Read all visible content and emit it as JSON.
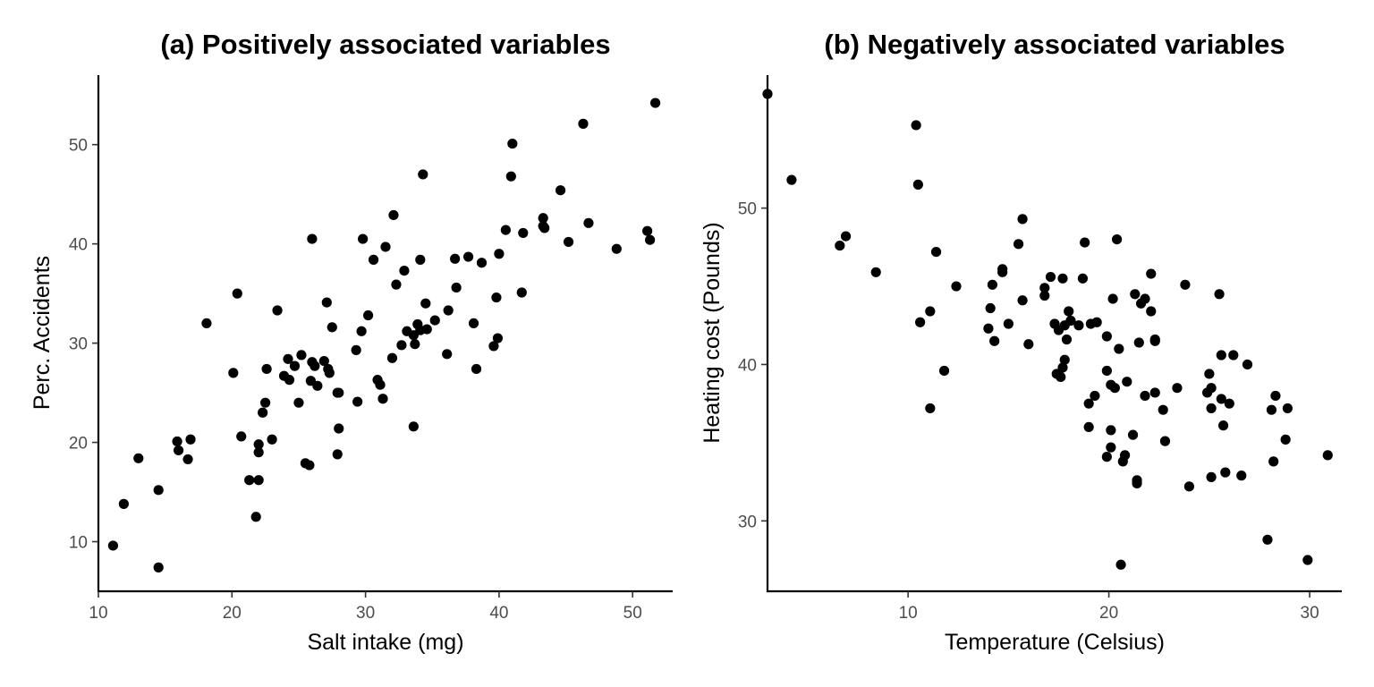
{
  "chart_data": [
    {
      "type": "scatter",
      "title": "(a) Positively associated variables",
      "xlabel": "Salt intake (mg)",
      "ylabel": "Perc. Accidents",
      "xlim": [
        10,
        53
      ],
      "ylim": [
        5,
        57
      ],
      "xticks": [
        10,
        20,
        30,
        40,
        50
      ],
      "yticks": [
        10,
        20,
        30,
        40,
        50
      ],
      "grid": false,
      "point_color": "#000000",
      "points": [
        [
          11.1,
          9.6
        ],
        [
          11.9,
          13.8
        ],
        [
          13.0,
          18.4
        ],
        [
          14.5,
          15.2
        ],
        [
          14.5,
          7.4
        ],
        [
          15.9,
          20.1
        ],
        [
          16.0,
          19.2
        ],
        [
          16.7,
          18.3
        ],
        [
          16.9,
          20.3
        ],
        [
          18.1,
          32.0
        ],
        [
          20.1,
          27.0
        ],
        [
          20.4,
          35.0
        ],
        [
          20.7,
          20.6
        ],
        [
          21.3,
          16.2
        ],
        [
          21.8,
          12.5
        ],
        [
          22.0,
          19.8
        ],
        [
          22.0,
          19.0
        ],
        [
          22.0,
          16.2
        ],
        [
          22.3,
          23.0
        ],
        [
          22.5,
          24.0
        ],
        [
          22.6,
          27.4
        ],
        [
          23.0,
          20.3
        ],
        [
          23.4,
          33.3
        ],
        [
          23.9,
          26.7
        ],
        [
          24.2,
          28.4
        ],
        [
          24.3,
          26.3
        ],
        [
          24.7,
          27.7
        ],
        [
          25.0,
          24.0
        ],
        [
          25.2,
          28.8
        ],
        [
          25.5,
          17.9
        ],
        [
          25.8,
          17.7
        ],
        [
          25.9,
          26.2
        ],
        [
          26.0,
          40.5
        ],
        [
          26.0,
          28.1
        ],
        [
          26.2,
          27.7
        ],
        [
          26.4,
          25.7
        ],
        [
          26.9,
          28.2
        ],
        [
          27.1,
          34.1
        ],
        [
          27.2,
          27.4
        ],
        [
          27.3,
          27.0
        ],
        [
          27.5,
          31.6
        ],
        [
          27.9,
          25.0
        ],
        [
          27.9,
          18.8
        ],
        [
          28.0,
          25.0
        ],
        [
          28.0,
          21.4
        ],
        [
          29.3,
          29.3
        ],
        [
          29.4,
          24.1
        ],
        [
          29.7,
          31.2
        ],
        [
          29.8,
          40.5
        ],
        [
          30.2,
          32.8
        ],
        [
          30.6,
          38.4
        ],
        [
          30.9,
          26.3
        ],
        [
          31.1,
          25.8
        ],
        [
          31.3,
          24.4
        ],
        [
          31.5,
          39.7
        ],
        [
          32.0,
          28.5
        ],
        [
          32.1,
          42.9
        ],
        [
          32.3,
          35.9
        ],
        [
          32.7,
          29.8
        ],
        [
          32.9,
          37.3
        ],
        [
          33.1,
          31.2
        ],
        [
          33.6,
          21.6
        ],
        [
          33.6,
          30.8
        ],
        [
          33.7,
          29.9
        ],
        [
          33.9,
          31.9
        ],
        [
          34.1,
          38.4
        ],
        [
          34.1,
          31.3
        ],
        [
          34.3,
          47.0
        ],
        [
          34.5,
          34.0
        ],
        [
          34.6,
          31.4
        ],
        [
          35.2,
          32.3
        ],
        [
          36.1,
          28.9
        ],
        [
          36.2,
          33.3
        ],
        [
          36.7,
          38.5
        ],
        [
          36.8,
          35.6
        ],
        [
          37.7,
          38.7
        ],
        [
          38.1,
          32.0
        ],
        [
          38.3,
          27.4
        ],
        [
          38.7,
          38.1
        ],
        [
          39.6,
          29.7
        ],
        [
          39.8,
          34.6
        ],
        [
          39.9,
          30.5
        ],
        [
          40.0,
          39.0
        ],
        [
          40.5,
          41.4
        ],
        [
          40.9,
          46.8
        ],
        [
          41.0,
          50.1
        ],
        [
          41.7,
          35.1
        ],
        [
          41.8,
          41.1
        ],
        [
          43.3,
          41.8
        ],
        [
          43.3,
          42.6
        ],
        [
          43.4,
          41.6
        ],
        [
          44.6,
          45.4
        ],
        [
          45.2,
          40.2
        ],
        [
          46.3,
          52.1
        ],
        [
          46.7,
          42.1
        ],
        [
          48.8,
          39.5
        ],
        [
          51.1,
          41.3
        ],
        [
          51.3,
          40.4
        ],
        [
          51.7,
          54.2
        ]
      ]
    },
    {
      "type": "scatter",
      "title": "(b) Negatively associated variables",
      "xlabel": "Temperature (Celsius)",
      "ylabel": "Heating cost (Pounds)",
      "xlim": [
        3,
        31.6
      ],
      "ylim": [
        25.5,
        58.5
      ],
      "xticks": [
        10,
        20,
        30
      ],
      "yticks": [
        30,
        40,
        50
      ],
      "grid": false,
      "point_color": "#000000",
      "points": [
        [
          3.0,
          57.3
        ],
        [
          4.2,
          51.8
        ],
        [
          6.6,
          47.6
        ],
        [
          6.9,
          48.2
        ],
        [
          8.4,
          45.9
        ],
        [
          10.4,
          55.3
        ],
        [
          10.5,
          51.5
        ],
        [
          10.6,
          42.7
        ],
        [
          11.1,
          43.4
        ],
        [
          11.1,
          37.2
        ],
        [
          11.4,
          47.2
        ],
        [
          11.8,
          39.6
        ],
        [
          12.4,
          45.0
        ],
        [
          14.0,
          42.3
        ],
        [
          14.1,
          43.6
        ],
        [
          14.2,
          45.1
        ],
        [
          14.3,
          41.5
        ],
        [
          14.7,
          45.9
        ],
        [
          14.7,
          46.1
        ],
        [
          15.0,
          42.6
        ],
        [
          15.5,
          47.7
        ],
        [
          15.7,
          44.1
        ],
        [
          15.7,
          49.3
        ],
        [
          16.0,
          41.3
        ],
        [
          16.8,
          44.9
        ],
        [
          16.8,
          44.4
        ],
        [
          17.1,
          45.6
        ],
        [
          17.3,
          42.6
        ],
        [
          17.4,
          39.4
        ],
        [
          17.5,
          42.2
        ],
        [
          17.6,
          39.2
        ],
        [
          17.7,
          45.5
        ],
        [
          17.7,
          39.8
        ],
        [
          17.8,
          40.3
        ],
        [
          17.8,
          42.5
        ],
        [
          17.9,
          41.6
        ],
        [
          18.0,
          43.4
        ],
        [
          18.1,
          42.8
        ],
        [
          18.5,
          42.5
        ],
        [
          18.7,
          45.5
        ],
        [
          18.8,
          47.8
        ],
        [
          19.0,
          37.5
        ],
        [
          19.0,
          36.0
        ],
        [
          19.1,
          42.6
        ],
        [
          19.3,
          38.0
        ],
        [
          19.4,
          42.7
        ],
        [
          19.9,
          41.8
        ],
        [
          19.9,
          39.6
        ],
        [
          19.9,
          34.1
        ],
        [
          20.1,
          38.7
        ],
        [
          20.1,
          35.8
        ],
        [
          20.1,
          34.7
        ],
        [
          20.2,
          44.2
        ],
        [
          20.3,
          38.5
        ],
        [
          20.4,
          48.0
        ],
        [
          20.5,
          41.0
        ],
        [
          20.6,
          27.2
        ],
        [
          20.7,
          33.8
        ],
        [
          20.8,
          34.2
        ],
        [
          20.9,
          38.9
        ],
        [
          21.2,
          35.5
        ],
        [
          21.3,
          44.5
        ],
        [
          21.4,
          32.6
        ],
        [
          21.4,
          32.4
        ],
        [
          21.5,
          41.4
        ],
        [
          21.6,
          43.9
        ],
        [
          21.8,
          44.2
        ],
        [
          21.8,
          38.0
        ],
        [
          22.1,
          43.4
        ],
        [
          22.1,
          45.8
        ],
        [
          22.3,
          41.6
        ],
        [
          22.3,
          41.5
        ],
        [
          22.3,
          38.2
        ],
        [
          22.7,
          37.1
        ],
        [
          22.8,
          35.1
        ],
        [
          23.4,
          38.5
        ],
        [
          23.8,
          45.1
        ],
        [
          24.0,
          32.2
        ],
        [
          24.9,
          38.2
        ],
        [
          25.0,
          39.4
        ],
        [
          25.1,
          38.5
        ],
        [
          25.1,
          37.2
        ],
        [
          25.1,
          32.8
        ],
        [
          25.5,
          44.5
        ],
        [
          25.6,
          40.6
        ],
        [
          25.6,
          37.8
        ],
        [
          25.7,
          36.1
        ],
        [
          25.8,
          33.1
        ],
        [
          26.0,
          37.5
        ],
        [
          26.2,
          40.6
        ],
        [
          26.6,
          32.9
        ],
        [
          26.9,
          40.0
        ],
        [
          27.9,
          28.8
        ],
        [
          28.1,
          37.1
        ],
        [
          28.2,
          33.8
        ],
        [
          28.3,
          38.0
        ],
        [
          28.8,
          35.2
        ],
        [
          28.9,
          37.2
        ],
        [
          29.9,
          27.5
        ],
        [
          30.9,
          34.2
        ]
      ]
    }
  ]
}
